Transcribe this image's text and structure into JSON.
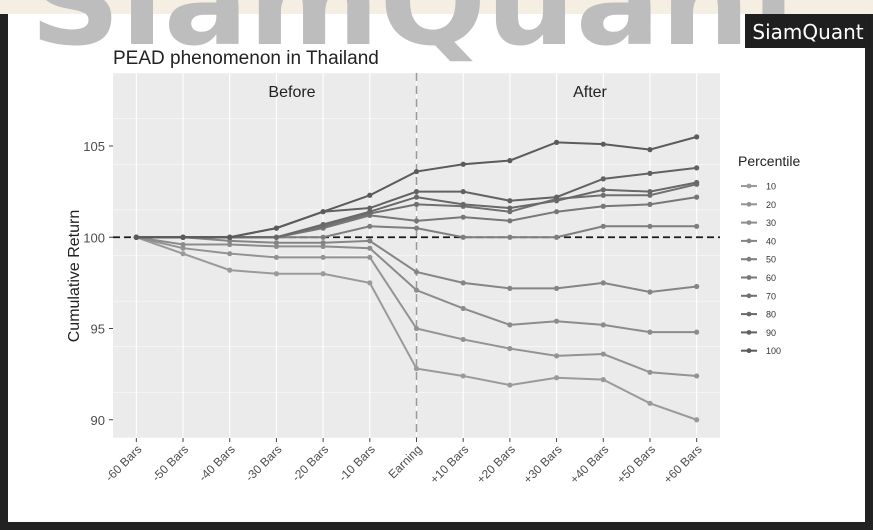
{
  "brand": {
    "watermark": "SiamQuant",
    "badge": "SiamQuant"
  },
  "chart_data": {
    "type": "line",
    "title": "PEAD phenomenon in Thailand",
    "xlabel": "",
    "ylabel": "Cumulative Return",
    "categories": [
      "-60 Bars",
      "-50 Bars",
      "-40 Bars",
      "-30 Bars",
      "-20 Bars",
      "-10 Bars",
      "Earning",
      "+10 Bars",
      "+20 Bars",
      "+30 Bars",
      "+40 Bars",
      "+50 Bars",
      "+60 Bars"
    ],
    "ylim": [
      89,
      109
    ],
    "yticks": [
      90,
      95,
      100,
      105
    ],
    "grid": true,
    "panels": {
      "before": "Before",
      "after": "After"
    },
    "reference_line": 100,
    "legend": {
      "title": "Percentile",
      "position": "right"
    },
    "colors": {
      "panel_bg": "#ebebeb",
      "grid": "#ffffff",
      "series": "#8a8a8a",
      "series_dark": "#5e5e5e",
      "ref_line": "#1a1a1a",
      "earning_line": "#9a9a9a",
      "frame": "#222222",
      "badge_bg": "#1f1f1f",
      "badge_text": "#ffffff"
    },
    "series": [
      {
        "name": "10",
        "values": [
          100,
          99.1,
          98.2,
          98.0,
          98.0,
          97.5,
          92.8,
          92.4,
          91.9,
          92.3,
          92.2,
          90.9,
          90.0
        ]
      },
      {
        "name": "20",
        "values": [
          100,
          99.4,
          99.1,
          98.9,
          98.9,
          98.9,
          95.0,
          94.4,
          93.9,
          93.5,
          93.6,
          92.6,
          92.4
        ]
      },
      {
        "name": "30",
        "values": [
          100,
          99.6,
          99.6,
          99.5,
          99.5,
          99.4,
          97.1,
          96.1,
          95.2,
          95.4,
          95.2,
          94.8,
          94.8
        ]
      },
      {
        "name": "40",
        "values": [
          100,
          100,
          99.8,
          99.7,
          99.7,
          99.8,
          98.1,
          97.5,
          97.2,
          97.2,
          97.5,
          97.0,
          97.3
        ]
      },
      {
        "name": "50",
        "values": [
          100,
          100,
          100,
          100,
          100,
          100.6,
          100.5,
          100.0,
          100.0,
          100.0,
          100.6,
          100.6,
          100.6
        ]
      },
      {
        "name": "60",
        "values": [
          100,
          100,
          100,
          100,
          100.5,
          101.2,
          100.9,
          101.1,
          100.9,
          101.4,
          101.7,
          101.8,
          102.2
        ]
      },
      {
        "name": "70",
        "values": [
          100,
          100,
          100,
          100,
          100.6,
          101.3,
          101.8,
          101.7,
          101.4,
          102.1,
          102.3,
          102.3,
          102.9
        ]
      },
      {
        "name": "80",
        "values": [
          100,
          100,
          100,
          100,
          100.7,
          101.4,
          102.2,
          101.8,
          101.6,
          102.0,
          102.6,
          102.5,
          103.0
        ]
      },
      {
        "name": "90",
        "values": [
          100,
          100,
          100,
          100.5,
          101.4,
          101.6,
          102.5,
          102.5,
          102.0,
          102.2,
          103.2,
          103.5,
          103.8
        ]
      },
      {
        "name": "100",
        "values": [
          100,
          100,
          100,
          100.5,
          101.4,
          102.3,
          103.6,
          104.0,
          104.2,
          105.2,
          105.1,
          104.8,
          105.5
        ]
      }
    ]
  }
}
